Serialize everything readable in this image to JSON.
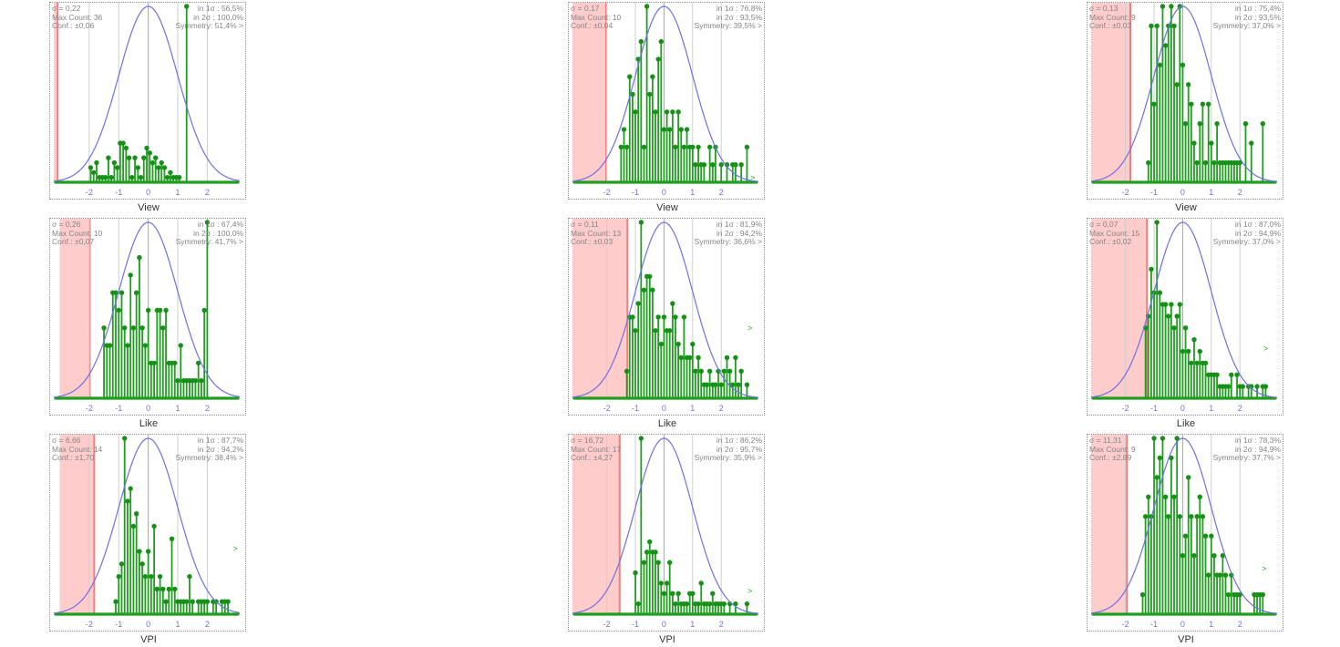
{
  "colors": {
    "bar": "#1f9e1f",
    "bar_dot": "#169016",
    "curve": "#6f6fe8",
    "band_fill": "#ffcccc",
    "band_edge": "#f08080",
    "grid": "#cfcfcf",
    "tick": "#7272d6",
    "arrow": "#22aa22"
  },
  "chart_data": [
    {
      "type": "bar",
      "caption": "View",
      "sigma": "σ = 0,22",
      "max_count": "Max Count: 36",
      "conf": "Conf.: ±0,06",
      "in1": "in 1σ : 56,5%",
      "in2": "in 2σ : 100,0%",
      "symmetry": "Symmetry: 51,4% >",
      "xlim": [
        -3.2,
        3.1
      ],
      "ymax": 36,
      "band": [
        -3.2,
        -3.07
      ],
      "arrow": null,
      "xticks": [
        "-2",
        "-1",
        "0",
        "1",
        "2"
      ],
      "x": [
        -1.95,
        -1.85,
        -1.75,
        -1.65,
        -1.55,
        -1.45,
        -1.35,
        -1.25,
        -1.15,
        -1.05,
        -0.95,
        -0.85,
        -0.75,
        -0.65,
        -0.55,
        -0.45,
        -0.35,
        -0.25,
        -0.15,
        -0.05,
        0.05,
        0.15,
        0.25,
        0.35,
        0.45,
        0.55,
        0.65,
        0.75,
        0.85,
        0.95,
        1.05,
        1.15,
        1.25,
        1.3
      ],
      "values": [
        3,
        2,
        4,
        1,
        1,
        1,
        5,
        1,
        4,
        3,
        8,
        8,
        7,
        5,
        1,
        5,
        3,
        1,
        5,
        7,
        6,
        4,
        5,
        3,
        4,
        3,
        1,
        2,
        1,
        1,
        1,
        0,
        0,
        36
      ]
    },
    {
      "type": "bar",
      "caption": "View",
      "sigma": "σ = 0,17",
      "max_count": "Max Count: 10",
      "conf": "Conf.: ±0,04",
      "in1": "in 1σ : 76,8%",
      "in2": "in 2σ : 93,5%",
      "symmetry": "Symmetry: 39,5% >",
      "xlim": [
        -3.2,
        3.3
      ],
      "ymax": 10,
      "band": [
        -3.2,
        -2.02
      ],
      "arrow": {
        "x": 3.1,
        "v": 0.1
      },
      "xticks": [
        "-2",
        "-1",
        "0",
        "1",
        "2"
      ],
      "x": [
        -1.5,
        -1.4,
        -1.3,
        -1.2,
        -1.1,
        -1.0,
        -0.9,
        -0.8,
        -0.7,
        -0.6,
        -0.5,
        -0.4,
        -0.3,
        -0.2,
        -0.1,
        0.0,
        0.1,
        0.2,
        0.3,
        0.4,
        0.5,
        0.6,
        0.7,
        0.8,
        0.9,
        1.0,
        1.1,
        1.2,
        1.3,
        1.4,
        1.5,
        1.6,
        1.7,
        1.8,
        1.9,
        2.0,
        2.1,
        2.2,
        2.3,
        2.4,
        2.5,
        2.6,
        2.7,
        2.8,
        2.9
      ],
      "values": [
        2,
        3,
        2,
        6,
        5,
        4,
        7,
        8,
        2,
        10,
        5,
        6,
        4,
        7,
        8,
        3,
        4,
        3,
        4,
        2,
        4,
        3,
        2,
        3,
        2,
        2,
        1,
        2,
        1,
        1,
        0,
        2,
        1,
        2,
        0,
        1,
        0,
        1,
        0,
        1,
        1,
        0,
        1,
        0,
        2
      ]
    },
    {
      "type": "bar",
      "caption": "View",
      "sigma": "σ = 0,13",
      "max_count": "Max Count: 9",
      "conf": "Conf.: ±0,03",
      "in1": "in 1σ : 75,4%",
      "in2": "in 2σ : 93,5%",
      "symmetry": "Symmetry: 37,0% >",
      "xlim": [
        -3.2,
        3.3
      ],
      "ymax": 9,
      "band": [
        -3.2,
        -1.83
      ],
      "arrow": null,
      "xticks": [
        "-2",
        "-1",
        "0",
        "1",
        "2"
      ],
      "x": [
        -1.2,
        -1.1,
        -1.0,
        -0.9,
        -0.8,
        -0.7,
        -0.6,
        -0.5,
        -0.4,
        -0.3,
        -0.2,
        -0.1,
        0.0,
        0.1,
        0.2,
        0.3,
        0.4,
        0.5,
        0.6,
        0.7,
        0.8,
        0.9,
        1.0,
        1.1,
        1.2,
        1.3,
        1.4,
        1.5,
        1.6,
        1.7,
        1.8,
        1.9,
        2.0,
        2.1,
        2.2,
        2.3,
        2.4,
        2.5,
        2.6,
        2.7,
        2.8,
        2.9
      ],
      "values": [
        1,
        8,
        4,
        8,
        6,
        9,
        7,
        8,
        9,
        8,
        5,
        9,
        6,
        3,
        5,
        4,
        2,
        1,
        3,
        4,
        1,
        4,
        2,
        1,
        3,
        1,
        1,
        1,
        1,
        1,
        1,
        1,
        1,
        0,
        3,
        0,
        2,
        0,
        0,
        0,
        3,
        0
      ]
    },
    {
      "type": "bar",
      "caption": "Like",
      "sigma": "σ = 0,26",
      "max_count": "Max Count: 10",
      "conf": "Conf.: ±0,07",
      "in1": "in 1σ : 67,4%",
      "in2": "in 2σ : 100,0%",
      "symmetry": "Symmetry: 41,7% >",
      "xlim": [
        -3.2,
        3.1
      ],
      "ymax": 10,
      "band": [
        -3.0,
        -1.98
      ],
      "arrow": null,
      "xticks": [
        "-2",
        "-1",
        "0",
        "1",
        "2"
      ],
      "x": [
        -1.5,
        -1.4,
        -1.3,
        -1.2,
        -1.1,
        -1.0,
        -0.9,
        -0.8,
        -0.7,
        -0.6,
        -0.5,
        -0.4,
        -0.3,
        -0.2,
        -0.1,
        0.0,
        0.1,
        0.2,
        0.3,
        0.4,
        0.5,
        0.6,
        0.7,
        0.8,
        0.9,
        1.0,
        1.1,
        1.2,
        1.3,
        1.4,
        1.5,
        1.6,
        1.7,
        1.8,
        1.9,
        2.0
      ],
      "values": [
        4,
        3,
        3,
        6,
        6,
        5,
        6,
        4,
        3,
        7,
        4,
        6,
        8,
        4,
        3,
        5,
        2,
        2,
        5,
        5,
        4,
        5,
        2,
        2,
        2,
        1,
        3,
        1,
        1,
        1,
        1,
        1,
        2,
        1,
        5,
        10
      ]
    },
    {
      "type": "bar",
      "caption": "Like",
      "sigma": "σ = 0,11",
      "max_count": "Max Count: 13",
      "conf": "Conf.: ±0,03",
      "in1": "in 1σ : 81,9%",
      "in2": "in 2σ : 94,2%",
      "symmetry": "Symmetry: 36,6% >",
      "xlim": [
        -3.2,
        3.3
      ],
      "ymax": 13,
      "band": [
        -3.2,
        -1.28
      ],
      "arrow": {
        "x": 3.0,
        "v": 5
      },
      "xticks": [
        "-2",
        "-1",
        "0",
        "1",
        "2"
      ],
      "x": [
        -1.3,
        -1.2,
        -1.1,
        -1.0,
        -0.9,
        -0.8,
        -0.7,
        -0.6,
        -0.5,
        -0.4,
        -0.3,
        -0.2,
        -0.1,
        0.0,
        0.1,
        0.2,
        0.3,
        0.4,
        0.5,
        0.6,
        0.7,
        0.8,
        0.9,
        1.0,
        1.1,
        1.2,
        1.3,
        1.4,
        1.5,
        1.6,
        1.7,
        1.8,
        1.9,
        2.0,
        2.1,
        2.2,
        2.3,
        2.4,
        2.5,
        2.6,
        2.7,
        2.8,
        2.9
      ],
      "values": [
        2,
        6,
        6,
        5,
        7,
        13,
        8,
        9,
        9,
        8,
        5,
        6,
        4,
        6,
        5,
        5,
        7,
        6,
        4,
        3,
        6,
        3,
        3,
        4,
        2,
        3,
        2,
        1,
        1,
        2,
        1,
        1,
        2,
        1,
        2,
        3,
        2,
        1,
        3,
        1,
        2,
        0,
        1
      ]
    },
    {
      "type": "bar",
      "caption": "Like",
      "sigma": "σ = 0,07",
      "max_count": "Max Count: 15",
      "conf": "Conf.: ±0,02",
      "in1": "in 1σ : 87,0%",
      "in2": "in 2σ : 94,9%",
      "symmetry": "Symmetry: 37,0% >",
      "xlim": [
        -3.2,
        3.3
      ],
      "ymax": 15,
      "band": [
        -3.2,
        -1.25
      ],
      "arrow": {
        "x": 2.9,
        "v": 4
      },
      "xticks": [
        "-2",
        "-1",
        "0",
        "1",
        "2"
      ],
      "x": [
        -1.3,
        -1.2,
        -1.1,
        -1.0,
        -0.9,
        -0.8,
        -0.7,
        -0.6,
        -0.5,
        -0.4,
        -0.3,
        -0.2,
        -0.1,
        0.0,
        0.1,
        0.2,
        0.3,
        0.4,
        0.5,
        0.6,
        0.7,
        0.8,
        0.9,
        1.0,
        1.1,
        1.2,
        1.3,
        1.4,
        1.5,
        1.6,
        1.7,
        1.8,
        1.9,
        2.0,
        2.1,
        2.2,
        2.3,
        2.4,
        2.5,
        2.6,
        2.7,
        2.8,
        2.9
      ],
      "values": [
        6,
        7,
        11,
        9,
        15,
        9,
        8,
        8,
        7,
        8,
        6,
        7,
        8,
        4,
        6,
        4,
        3,
        5,
        3,
        4,
        3,
        3,
        2,
        2,
        2,
        2,
        1,
        1,
        1,
        1,
        2,
        0,
        2,
        1,
        1,
        0,
        1,
        1,
        0,
        1,
        0,
        1,
        1
      ]
    },
    {
      "type": "bar",
      "caption": "VPI",
      "sigma": "σ = 6,66",
      "max_count": "Max Count: 14",
      "conf": "Conf.: ±1,70",
      "in1": "in 1σ : 87,7%",
      "in2": "in 2σ : 94,2%",
      "symmetry": "Symmetry: 38,4% >",
      "xlim": [
        -3.2,
        3.1
      ],
      "ymax": 14,
      "band": [
        -3.0,
        -1.83
      ],
      "arrow": {
        "x": 2.95,
        "v": 5
      },
      "xticks": [
        "-2",
        "-1",
        "0",
        "1",
        "2"
      ],
      "x": [
        -1.1,
        -1.0,
        -0.9,
        -0.8,
        -0.7,
        -0.6,
        -0.5,
        -0.4,
        -0.3,
        -0.2,
        -0.1,
        0.0,
        0.1,
        0.2,
        0.3,
        0.4,
        0.5,
        0.6,
        0.7,
        0.8,
        0.9,
        1.0,
        1.1,
        1.2,
        1.3,
        1.4,
        1.5,
        1.6,
        1.7,
        1.8,
        1.9,
        2.0,
        2.1,
        2.2,
        2.3,
        2.4,
        2.5,
        2.6,
        2.7
      ],
      "values": [
        1,
        3,
        4,
        14,
        9,
        10,
        7,
        8,
        5,
        4,
        3,
        5,
        3,
        7,
        2,
        3,
        2,
        1,
        2,
        6,
        2,
        1,
        1,
        1,
        1,
        3,
        1,
        0,
        1,
        1,
        1,
        1,
        0,
        1,
        1,
        0,
        1,
        1,
        1
      ]
    },
    {
      "type": "bar",
      "caption": "VPI",
      "sigma": "σ = 16,72",
      "max_count": "Max Count: 17",
      "conf": "Conf.: ±4,27",
      "in1": "in 1σ : 86,2%",
      "in2": "in 2σ : 95,7%",
      "symmetry": "Symmetry: 35,9% >",
      "xlim": [
        -3.2,
        3.3
      ],
      "ymax": 17,
      "band": [
        -3.2,
        -1.55
      ],
      "arrow": {
        "x": 3.0,
        "v": 2
      },
      "xticks": [
        "-2",
        "-1",
        "0",
        "1",
        "2"
      ],
      "x": [
        -1.0,
        -0.9,
        -0.8,
        -0.7,
        -0.6,
        -0.5,
        -0.4,
        -0.3,
        -0.2,
        -0.1,
        0.0,
        0.1,
        0.2,
        0.3,
        0.4,
        0.5,
        0.6,
        0.7,
        0.8,
        0.9,
        1.0,
        1.1,
        1.2,
        1.3,
        1.4,
        1.5,
        1.6,
        1.7,
        1.8,
        1.9,
        2.0,
        2.1,
        2.2,
        2.3,
        2.4,
        2.5,
        2.6,
        2.7,
        2.8,
        2.9
      ],
      "values": [
        4,
        1,
        17,
        5,
        6,
        7,
        6,
        6,
        5,
        3,
        2,
        3,
        5,
        2,
        1,
        2,
        1,
        1,
        1,
        2,
        2,
        1,
        1,
        3,
        1,
        1,
        1,
        2,
        1,
        1,
        1,
        1,
        0,
        1,
        0,
        1,
        0,
        0,
        0,
        1
      ]
    },
    {
      "type": "bar",
      "caption": "VPI",
      "sigma": "σ = 11,31",
      "max_count": "Max Count: 9",
      "conf": "Conf.: ±2,89",
      "in1": "in 1σ : 78,3%",
      "in2": "in 2σ : 94,9%",
      "symmetry": "Symmetry: 37,7% >",
      "xlim": [
        -3.2,
        3.3
      ],
      "ymax": 9,
      "band": [
        -3.2,
        -1.95
      ],
      "arrow": {
        "x": 2.85,
        "v": 2.2
      },
      "xticks": [
        "-2",
        "-1",
        "0",
        "1",
        "2"
      ],
      "x": [
        -1.4,
        -1.3,
        -1.2,
        -1.1,
        -1.0,
        -0.9,
        -0.8,
        -0.7,
        -0.6,
        -0.5,
        -0.4,
        -0.3,
        -0.2,
        -0.1,
        0.0,
        0.1,
        0.2,
        0.3,
        0.4,
        0.5,
        0.6,
        0.7,
        0.8,
        0.9,
        1.0,
        1.1,
        1.2,
        1.3,
        1.4,
        1.5,
        1.6,
        1.7,
        1.8,
        1.9,
        2.0,
        2.1,
        2.2,
        2.3,
        2.4,
        2.5,
        2.6,
        2.7,
        2.8,
        2.9
      ],
      "values": [
        1,
        5,
        6,
        5,
        9,
        7,
        8,
        9,
        6,
        5,
        8,
        6,
        9,
        5,
        3,
        4,
        7,
        5,
        3,
        5,
        6,
        5,
        4,
        2,
        4,
        3,
        2,
        2,
        3,
        2,
        1,
        2,
        1,
        1,
        1,
        0,
        0,
        0,
        0,
        1,
        1,
        1,
        1,
        0
      ]
    }
  ]
}
